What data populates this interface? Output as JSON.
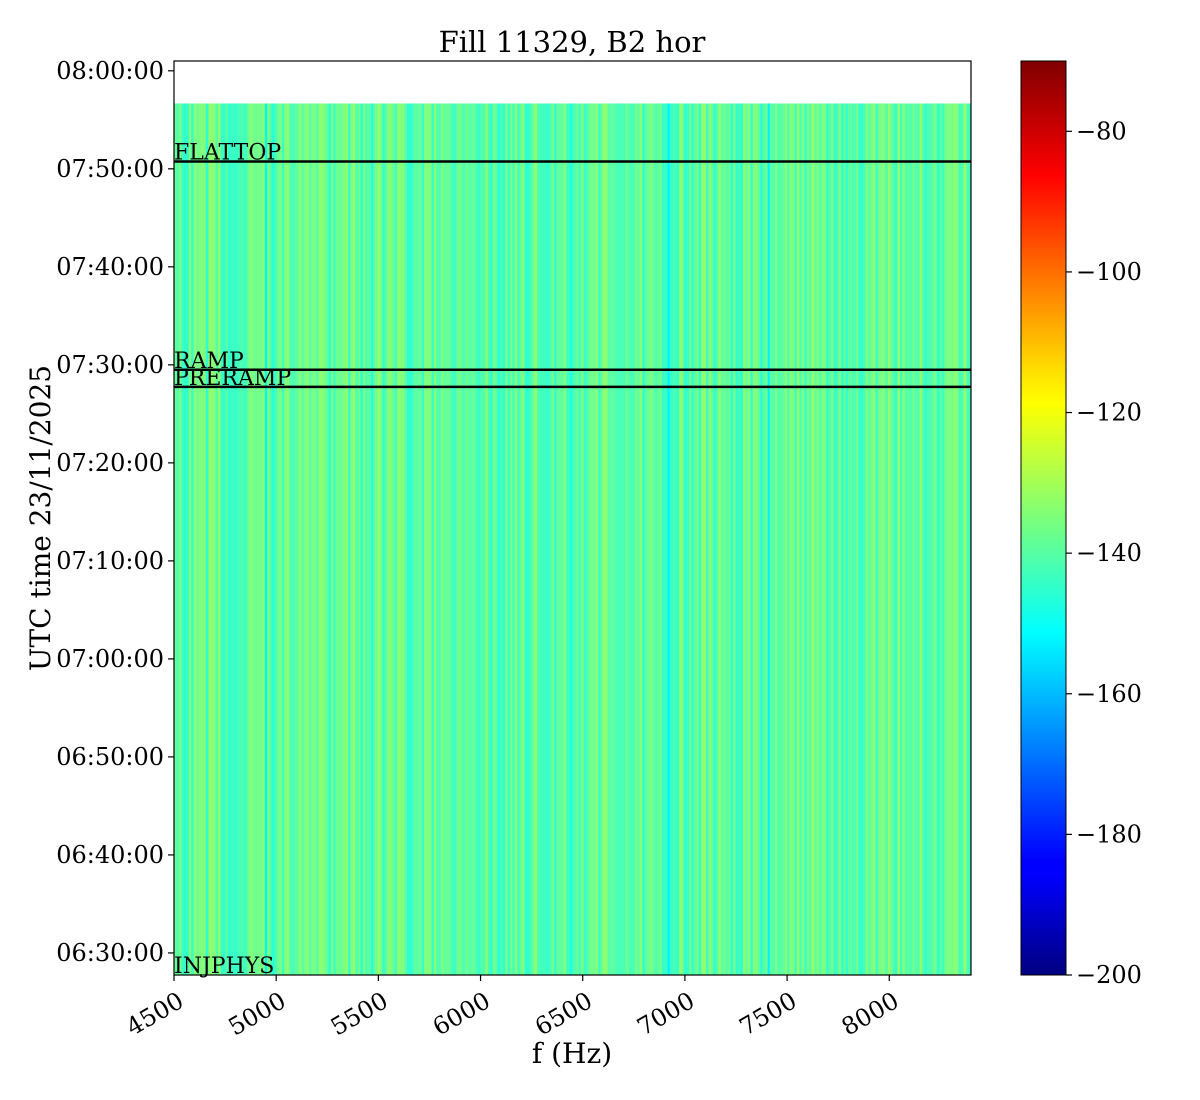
{
  "chart_data": {
    "type": "heatmap",
    "title": "Fill 11329, B2 hor",
    "xlabel": "f (Hz)",
    "ylabel": "UTC time 23/11/2025",
    "x_ticks": [
      4500,
      5000,
      5500,
      6000,
      6500,
      7000,
      7500,
      8000
    ],
    "y_ticks": [
      "06:30:00",
      "06:40:00",
      "06:50:00",
      "07:00:00",
      "07:10:00",
      "07:20:00",
      "07:30:00",
      "07:40:00",
      "07:50:00",
      "08:00:00"
    ],
    "xlim": [
      4500,
      8400
    ],
    "ylim": [
      "06:27:45",
      "08:01:00"
    ],
    "data_time_range": [
      "06:27:45",
      "07:56:40"
    ],
    "colorbar": {
      "colormap": "jet",
      "range": [
        -200,
        -70
      ],
      "ticks": [
        -80,
        -100,
        -120,
        -140,
        -160,
        -180,
        -200
      ],
      "tick_labels": [
        "−80",
        "−100",
        "−120",
        "−140",
        "−160",
        "−180",
        "−200"
      ]
    },
    "typical_value_range": [
      -146,
      -132
    ],
    "dips": [
      {
        "f": 4950,
        "value": -152
      },
      {
        "f": 5470,
        "value": -149
      },
      {
        "f": 6440,
        "value": -149
      },
      {
        "f": 6920,
        "value": -153
      },
      {
        "f": 7410,
        "value": -153
      }
    ],
    "events": [
      {
        "label": "FLATTOP",
        "time": "07:50:45"
      },
      {
        "label": "RAMP",
        "time": "07:29:30"
      },
      {
        "label": "PRERAMP",
        "time": "07:27:45"
      },
      {
        "label": "INJPHYS",
        "time": "06:27:45"
      }
    ]
  }
}
